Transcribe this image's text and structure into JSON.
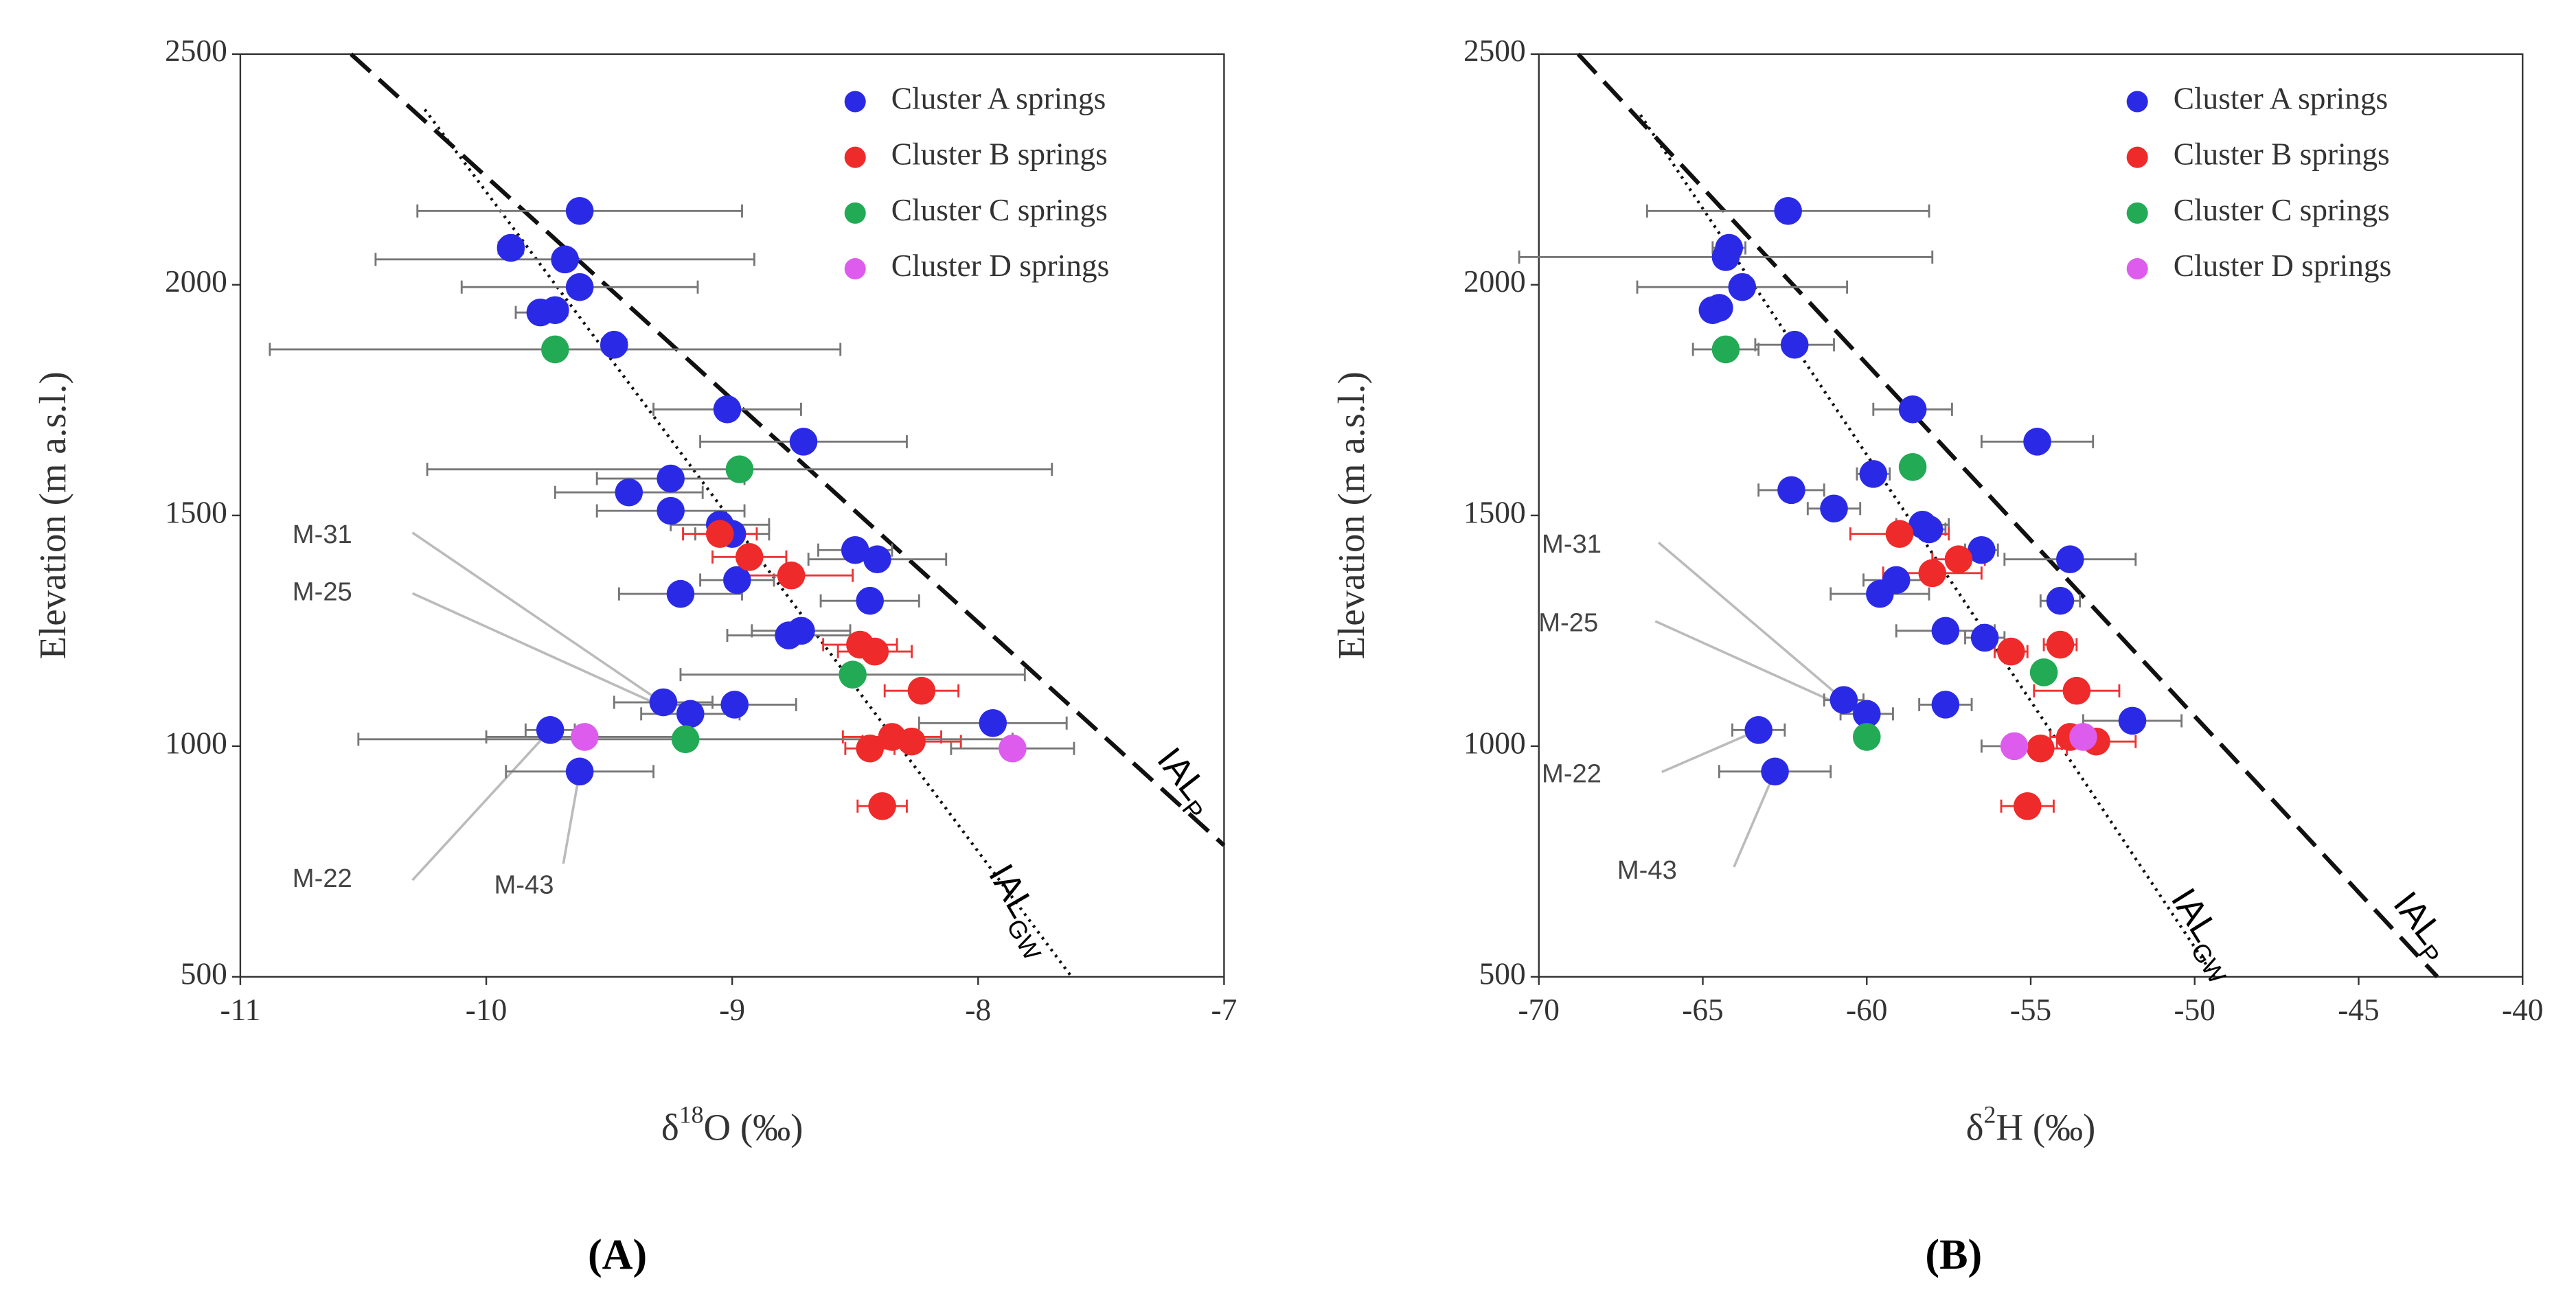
{
  "chart_data": [
    {
      "type": "scatter",
      "panel_label": "(A)",
      "ylabel": "Elevation (m a.s.l.)",
      "xlabel": [
        "δ",
        "18",
        "O (‰)"
      ],
      "xlim": [
        -11,
        -7
      ],
      "xticks": [
        -11,
        -10,
        -9,
        -8,
        -7
      ],
      "ylim": [
        500,
        2500
      ],
      "yticks": [
        500,
        1000,
        1500,
        2000,
        2500
      ],
      "series": [
        {
          "name": "Cluster A springs",
          "color": "#2a2ae6",
          "x": [
            -9.62,
            -9.68,
            -9.9,
            -9.62,
            -9.78,
            -9.72,
            -9.48,
            -9.02,
            -8.71,
            -9.25,
            -9.42,
            -9.25,
            -9.05,
            -9.0,
            -8.5,
            -8.41,
            -8.98,
            -9.21,
            -8.44,
            -8.77,
            -8.72,
            -9.28,
            -9.17,
            -8.99,
            -7.94,
            -9.74,
            -9.62
          ],
          "values": [
            2160,
            2055,
            2080,
            1995,
            1940,
            1945,
            1870,
            1730,
            1660,
            1580,
            1550,
            1510,
            1480,
            1460,
            1425,
            1405,
            1360,
            1330,
            1315,
            1240,
            1250,
            1095,
            1070,
            1090,
            1050,
            1035,
            945
          ],
          "xerr": [
            0.66,
            0.77,
            0.05,
            0.48,
            0.1,
            0.05,
            0.05,
            0.3,
            0.42,
            0.3,
            0.3,
            0.3,
            0.2,
            0.15,
            0.15,
            0.28,
            0.15,
            0.25,
            0.2,
            0.25,
            0.2,
            0.2,
            0.2,
            0.25,
            0.3,
            0.1,
            0.3
          ]
        },
        {
          "name": "Cluster B springs",
          "color": "#ee2a2a",
          "x": [
            -9.05,
            -8.93,
            -8.76,
            -8.48,
            -8.42,
            -8.23,
            -8.35,
            -8.27,
            -8.44,
            -8.39
          ],
          "values": [
            1460,
            1410,
            1370,
            1220,
            1205,
            1120,
            1020,
            1010,
            995,
            870
          ],
          "xerr": [
            0.15,
            0.15,
            0.25,
            0.15,
            0.15,
            0.15,
            0.2,
            0.2,
            0.1,
            0.1
          ]
        },
        {
          "name": "Cluster C springs",
          "color": "#22aa55",
          "x": [
            -8.97,
            -9.72,
            -8.51,
            -9.19
          ],
          "values": [
            1600,
            1860,
            1155,
            1015
          ],
          "xerr": [
            1.27,
            1.16,
            0.7,
            1.33
          ]
        },
        {
          "name": "Cluster D springs",
          "color": "#dd5cee",
          "x": [
            -9.6,
            -7.86
          ],
          "values": [
            1020,
            995
          ],
          "xerr": [
            0.4,
            0.25
          ]
        }
      ],
      "lines": [
        {
          "label": "IAL",
          "sub": "P",
          "style": "dashed",
          "x": [
            -10.55,
            -7.0
          ],
          "y": [
            2500,
            785
          ]
        },
        {
          "label": "IAL",
          "sub": "GW",
          "style": "dotted",
          "x": [
            -10.25,
            -7.62
          ],
          "y": [
            2380,
            500
          ]
        }
      ],
      "annotations": [
        {
          "text": "M-31",
          "x": -9.3,
          "y": 1100
        },
        {
          "text": "M-25",
          "x": -9.28,
          "y": 1085
        },
        {
          "text": "M-22",
          "x": -9.74,
          "y": 1035
        },
        {
          "text": "M-43",
          "x": -9.62,
          "y": 945
        }
      ]
    },
    {
      "type": "scatter",
      "panel_label": "(B)",
      "ylabel": "Elevation (m a.s.l.)",
      "xlabel": [
        "δ",
        "2",
        "H (‰)"
      ],
      "xlim": [
        -70,
        -40
      ],
      "xticks": [
        -70,
        -65,
        -60,
        -55,
        -50,
        -45,
        -40
      ],
      "ylim": [
        500,
        2500
      ],
      "yticks": [
        500,
        1000,
        1500,
        2000,
        2500
      ],
      "series": [
        {
          "name": "Cluster A springs",
          "color": "#2a2ae6",
          "x": [
            -62.4,
            -64.2,
            -64.3,
            -63.8,
            -64.7,
            -64.5,
            -62.2,
            -58.6,
            -54.8,
            -59.8,
            -62.3,
            -61.0,
            -58.3,
            -58.1,
            -56.5,
            -53.8,
            -59.1,
            -59.6,
            -54.1,
            -57.6,
            -56.4,
            -60.7,
            -60.0,
            -57.6,
            -51.9,
            -63.3,
            -62.8
          ],
          "values": [
            2160,
            2080,
            2060,
            1995,
            1945,
            1950,
            1870,
            1730,
            1660,
            1590,
            1555,
            1515,
            1480,
            1470,
            1425,
            1405,
            1360,
            1330,
            1315,
            1250,
            1235,
            1100,
            1070,
            1090,
            1055,
            1035,
            945
          ],
          "xerr": [
            4.3,
            0.5,
            6.3,
            3.2,
            0.3,
            0.3,
            1.2,
            1.2,
            1.7,
            0.5,
            1.0,
            0.8,
            0.8,
            0.5,
            0.5,
            2.0,
            1.0,
            1.5,
            0.6,
            1.5,
            0.6,
            0.6,
            0.8,
            0.8,
            1.5,
            0.8,
            1.7
          ]
        },
        {
          "name": "Cluster B springs",
          "color": "#ee2a2a",
          "x": [
            -59.0,
            -57.2,
            -58.0,
            -55.6,
            -54.1,
            -53.6,
            -53.0,
            -54.7,
            -55.1,
            -53.8
          ],
          "values": [
            1460,
            1405,
            1375,
            1205,
            1220,
            1120,
            1010,
            995,
            870,
            1020
          ],
          "xerr": [
            1.5,
            0.8,
            1.5,
            0.5,
            0.5,
            1.3,
            1.2,
            0.8,
            0.8,
            0.6
          ]
        },
        {
          "name": "Cluster C springs",
          "color": "#22aa55",
          "x": [
            -58.6,
            -64.3,
            -54.6,
            -60.0
          ],
          "values": [
            1605,
            1860,
            1160,
            1020
          ],
          "xerr": [
            0.2,
            1.0,
            0.3,
            0.2
          ]
        },
        {
          "name": "Cluster D springs",
          "color": "#dd5cee",
          "x": [
            -55.5,
            -53.4
          ],
          "values": [
            1000,
            1020
          ],
          "xerr": [
            1.0,
            0.5
          ]
        }
      ],
      "lines": [
        {
          "label": "IAL",
          "sub": "P",
          "style": "dashed",
          "x": [
            -68.8,
            -42.6
          ],
          "y": [
            2500,
            500
          ]
        },
        {
          "label": "IAL",
          "sub": "GW",
          "style": "dotted",
          "x": [
            -66.9,
            -49.4
          ],
          "y": [
            2368,
            500
          ]
        }
      ],
      "annotations": [
        {
          "text": "M-31",
          "x": -60.7,
          "y": 1100
        },
        {
          "text": "M-25",
          "x": -60.2,
          "y": 1070
        },
        {
          "text": "M-22",
          "x": -63.3,
          "y": 1035
        },
        {
          "text": "M-43",
          "x": -62.8,
          "y": 945
        }
      ]
    }
  ]
}
